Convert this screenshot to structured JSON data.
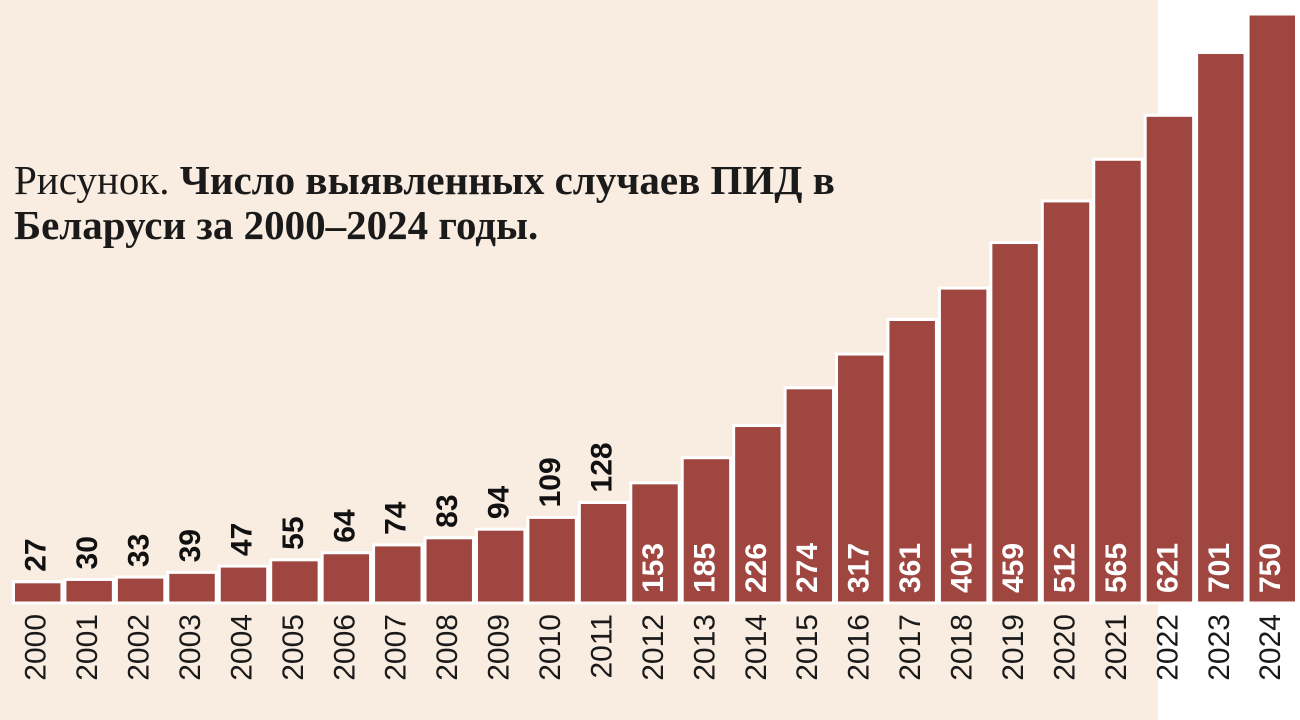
{
  "chart_data": {
    "type": "bar",
    "figure_label": "Рисунок.",
    "title": "Число выявленных случаев ПИД в Беларуси за 2000–2024 годы.",
    "categories": [
      "2000",
      "2001",
      "2002",
      "2003",
      "2004",
      "2005",
      "2006",
      "2007",
      "2008",
      "2009",
      "2010",
      "2011",
      "2012",
      "2013",
      "2014",
      "2015",
      "2016",
      "2017",
      "2018",
      "2019",
      "2020",
      "2021",
      "2022",
      "2023",
      "2024"
    ],
    "values": [
      27,
      30,
      33,
      39,
      47,
      55,
      64,
      74,
      83,
      94,
      109,
      128,
      153,
      185,
      226,
      274,
      317,
      361,
      401,
      459,
      512,
      565,
      621,
      701,
      750
    ],
    "color": "#a04641"
  }
}
